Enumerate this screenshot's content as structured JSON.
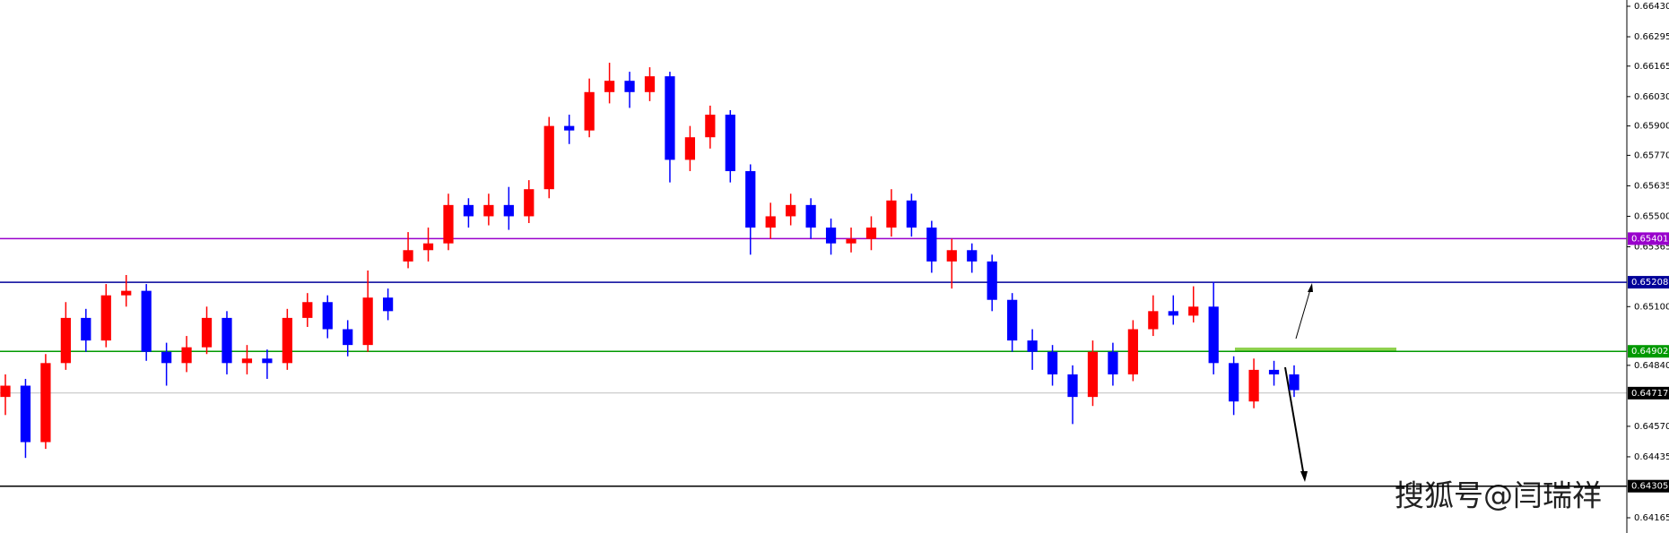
{
  "chart_data": {
    "type": "candlestick",
    "open": [
      0.647,
      0.6475,
      0.645,
      0.6485,
      0.6505,
      0.6495,
      0.6515,
      0.6517,
      0.649,
      0.6485,
      0.6492,
      0.6505,
      0.6485,
      0.6487,
      0.6485,
      0.6505,
      0.6512,
      0.65,
      0.6493,
      0.6514,
      0.653,
      0.6535,
      0.6538,
      0.6555,
      0.655,
      0.6555,
      0.655,
      0.6562,
      0.659,
      0.6588,
      0.6605,
      0.661,
      0.6605,
      0.6612,
      0.6575,
      0.6585,
      0.6595,
      0.657,
      0.6545,
      0.655,
      0.6555,
      0.6545,
      0.6538,
      0.654,
      0.6545,
      0.6557,
      0.6545,
      0.653,
      0.6535,
      0.653,
      0.6513,
      0.6495,
      0.649,
      0.648,
      0.647,
      0.649,
      0.648,
      0.65,
      0.6508,
      0.6506,
      0.651,
      0.6485,
      0.6468,
      0.6482,
      0.648
    ],
    "high": [
      0.648,
      0.6478,
      0.6489,
      0.6512,
      0.6509,
      0.652,
      0.6524,
      0.652,
      0.6494,
      0.6497,
      0.651,
      0.6508,
      0.6493,
      0.6491,
      0.6509,
      0.6516,
      0.6515,
      0.6504,
      0.6526,
      0.6518,
      0.6543,
      0.6545,
      0.656,
      0.6558,
      0.656,
      0.6563,
      0.6566,
      0.6594,
      0.6595,
      0.6611,
      0.6618,
      0.6614,
      0.6616,
      0.6614,
      0.659,
      0.6599,
      0.6597,
      0.6573,
      0.6556,
      0.656,
      0.6558,
      0.6549,
      0.6545,
      0.655,
      0.6562,
      0.656,
      0.6548,
      0.654,
      0.6538,
      0.6533,
      0.6516,
      0.65,
      0.6493,
      0.6484,
      0.6495,
      0.6494,
      0.6504,
      0.6515,
      0.6515,
      0.6519,
      0.6521,
      0.6488,
      0.6487,
      0.6486,
      0.6484
    ],
    "low": [
      0.6462,
      0.6443,
      0.6447,
      0.6482,
      0.649,
      0.6492,
      0.651,
      0.6486,
      0.6475,
      0.6481,
      0.6489,
      0.648,
      0.648,
      0.6478,
      0.6482,
      0.6501,
      0.6496,
      0.6488,
      0.649,
      0.6504,
      0.6527,
      0.653,
      0.6535,
      0.6545,
      0.6546,
      0.6544,
      0.6547,
      0.6558,
      0.6582,
      0.6585,
      0.66,
      0.6598,
      0.6601,
      0.6565,
      0.657,
      0.658,
      0.6565,
      0.6533,
      0.654,
      0.6546,
      0.654,
      0.6533,
      0.6534,
      0.6535,
      0.6541,
      0.6541,
      0.6525,
      0.6518,
      0.6525,
      0.6508,
      0.649,
      0.6482,
      0.6475,
      0.6458,
      0.6466,
      0.6475,
      0.6477,
      0.6497,
      0.6502,
      0.6503,
      0.648,
      0.6462,
      0.6465,
      0.6475,
      0.647
    ],
    "close": [
      0.6475,
      0.645,
      0.6485,
      0.6505,
      0.6495,
      0.6515,
      0.6517,
      0.649,
      0.6485,
      0.6492,
      0.6505,
      0.6485,
      0.6487,
      0.6485,
      0.6505,
      0.6512,
      0.65,
      0.6493,
      0.6514,
      0.6508,
      0.6535,
      0.6538,
      0.6555,
      0.655,
      0.6555,
      0.655,
      0.6562,
      0.659,
      0.6588,
      0.6605,
      0.661,
      0.6605,
      0.6612,
      0.6575,
      0.6585,
      0.6595,
      0.657,
      0.6545,
      0.655,
      0.6555,
      0.6545,
      0.6538,
      0.654,
      0.6545,
      0.6557,
      0.6545,
      0.653,
      0.6535,
      0.653,
      0.6513,
      0.6495,
      0.649,
      0.648,
      0.647,
      0.649,
      0.648,
      0.65,
      0.6508,
      0.6506,
      0.651,
      0.6485,
      0.6468,
      0.6482,
      0.648,
      0.6473
    ],
    "up_color": "#ff0000",
    "down_color": "#0000ff",
    "ylim": [
      0.64165,
      0.6643
    ],
    "yticks": [
      {
        "value": 0.6643,
        "label": "0.66430"
      },
      0.66295,
      0.66165,
      {
        "value": 0.6603,
        "label": "0.66030"
      },
      {
        "value": 0.659,
        "label": "0.65900"
      },
      {
        "value": 0.6577,
        "label": "0.65770"
      },
      0.65635,
      {
        "value": 0.655,
        "label": "0.65500"
      },
      0.65365,
      {
        "value": 0.651,
        "label": "0.65100"
      },
      {
        "value": 0.6484,
        "label": "0.64840"
      },
      {
        "value": 0.6457,
        "label": "0.64570"
      },
      0.64435,
      0.64165
    ],
    "levels": [
      {
        "value": 0.65401,
        "color": "#9900cc"
      },
      {
        "value": 0.65208,
        "color": "#000099"
      },
      {
        "value": 0.64902,
        "color": "#009900"
      },
      {
        "value": 0.64717,
        "color": "#000000"
      },
      {
        "value": 0.64305,
        "color": "#000000"
      }
    ],
    "watermark": "搜狐号@闫瑞祥"
  }
}
